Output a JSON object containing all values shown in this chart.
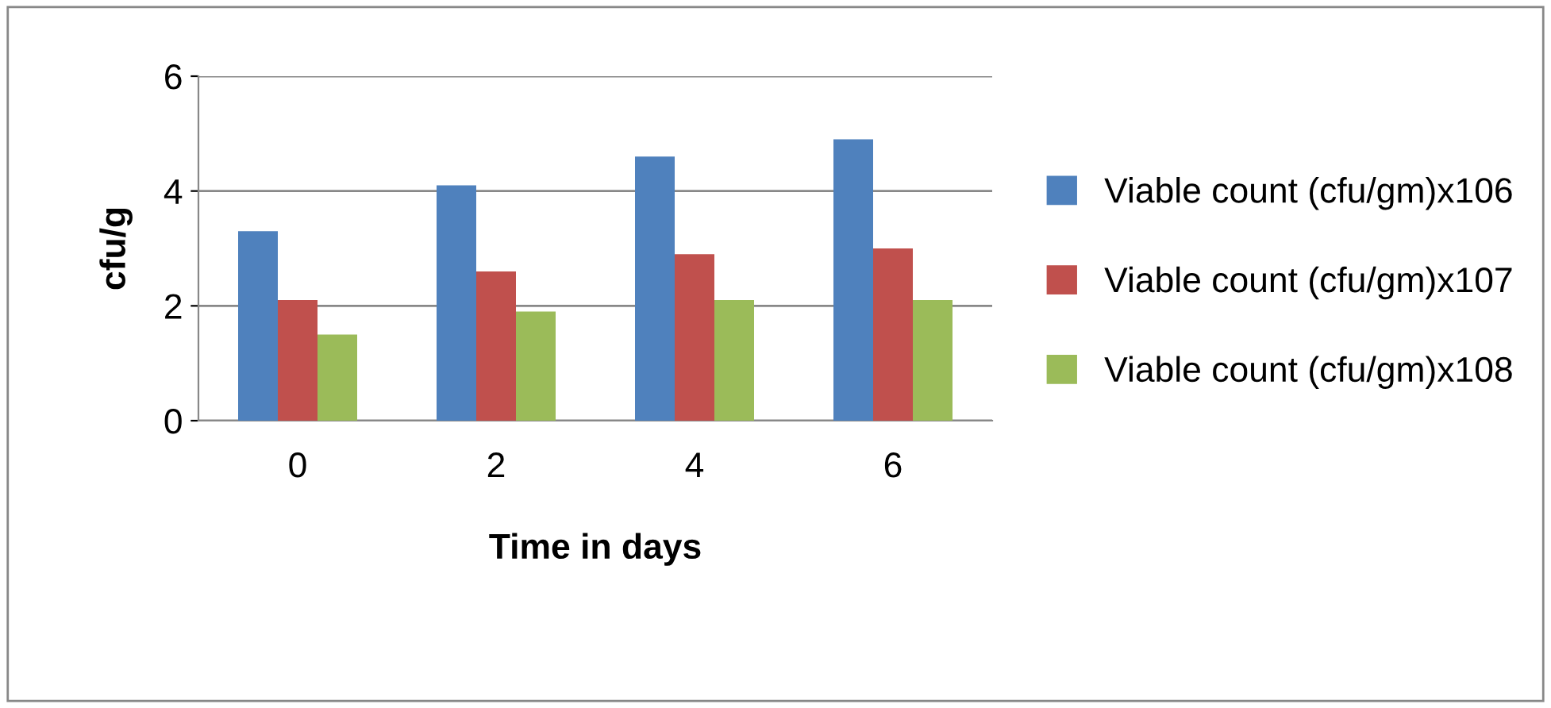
{
  "chart_data": {
    "type": "bar",
    "xlabel": "Time in days",
    "ylabel": "cfu/g",
    "categories": [
      "0",
      "2",
      "4",
      "6"
    ],
    "series": [
      {
        "name": "Viable count (cfu/gm)x106",
        "color": "#4f81bd",
        "values": [
          3.3,
          4.1,
          4.6,
          4.9
        ]
      },
      {
        "name": "Viable count (cfu/gm)x107",
        "color": "#c0504d",
        "values": [
          2.1,
          2.6,
          2.9,
          3.0
        ]
      },
      {
        "name": "Viable count (cfu/gm)x108",
        "color": "#9bbb59",
        "values": [
          1.5,
          1.9,
          2.1,
          2.1
        ]
      }
    ],
    "ylim": [
      0,
      6
    ],
    "yticks": [
      0,
      2,
      4,
      6
    ],
    "grid": "y",
    "legend": "right"
  }
}
